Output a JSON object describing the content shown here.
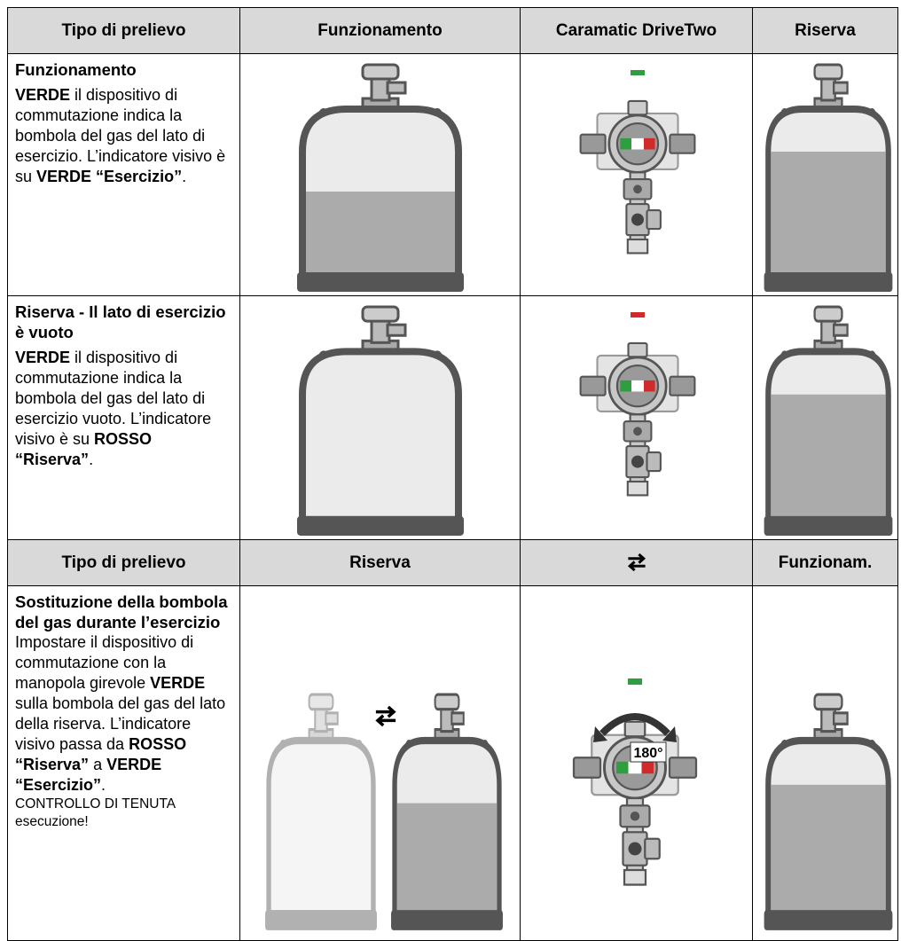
{
  "table": {
    "header": [
      "Tipo di prelievo",
      "Funzionamento",
      "Caramatic DriveTwo",
      "Riserva"
    ],
    "header2": [
      "Tipo di prelievo",
      "Riserva",
      "Funzionam."
    ],
    "rows": [
      {
        "title": "Funzionamento",
        "desc": [
          {
            "text": "VERDE",
            "bold": true
          },
          {
            "text": " il dispositivo di commutazione indica la bombola del gas del lato di esercizio. L’indicatore visivo è su "
          },
          {
            "text": "VERDE “Esercizio”",
            "bold": true
          },
          {
            "text": "."
          }
        ]
      },
      {
        "title": "Riserva - Il lato di esercizio è vuoto",
        "desc": [
          {
            "text": "VERDE",
            "bold": true
          },
          {
            "text": " il dispositivo di commutazione indica la bombola del gas del lato di esercizio vuoto. L’indicatore visivo è su "
          },
          {
            "text": "ROSSO “Riserva”",
            "bold": true
          },
          {
            "text": "."
          }
        ]
      },
      {
        "title": "Sostituzione della bombola del gas durante l’esercizio",
        "desc": [
          {
            "text": "Impostare il dispositivo di commutazione con la manopola girevole "
          },
          {
            "text": "VERDE",
            "bold": true
          },
          {
            "text": " sulla bombola del gas del lato della riserva. L’indicatore visivo passa da "
          },
          {
            "text": "ROSSO “Riserva”",
            "bold": true
          },
          {
            "text": " a "
          },
          {
            "text": "VERDE “Esercizio”",
            "bold": true
          },
          {
            "text": "."
          },
          {
            "text": "CONTROLLO DI TENUTA esecuzione!",
            "small": true
          }
        ],
        "dial_label": "180°"
      }
    ]
  }
}
